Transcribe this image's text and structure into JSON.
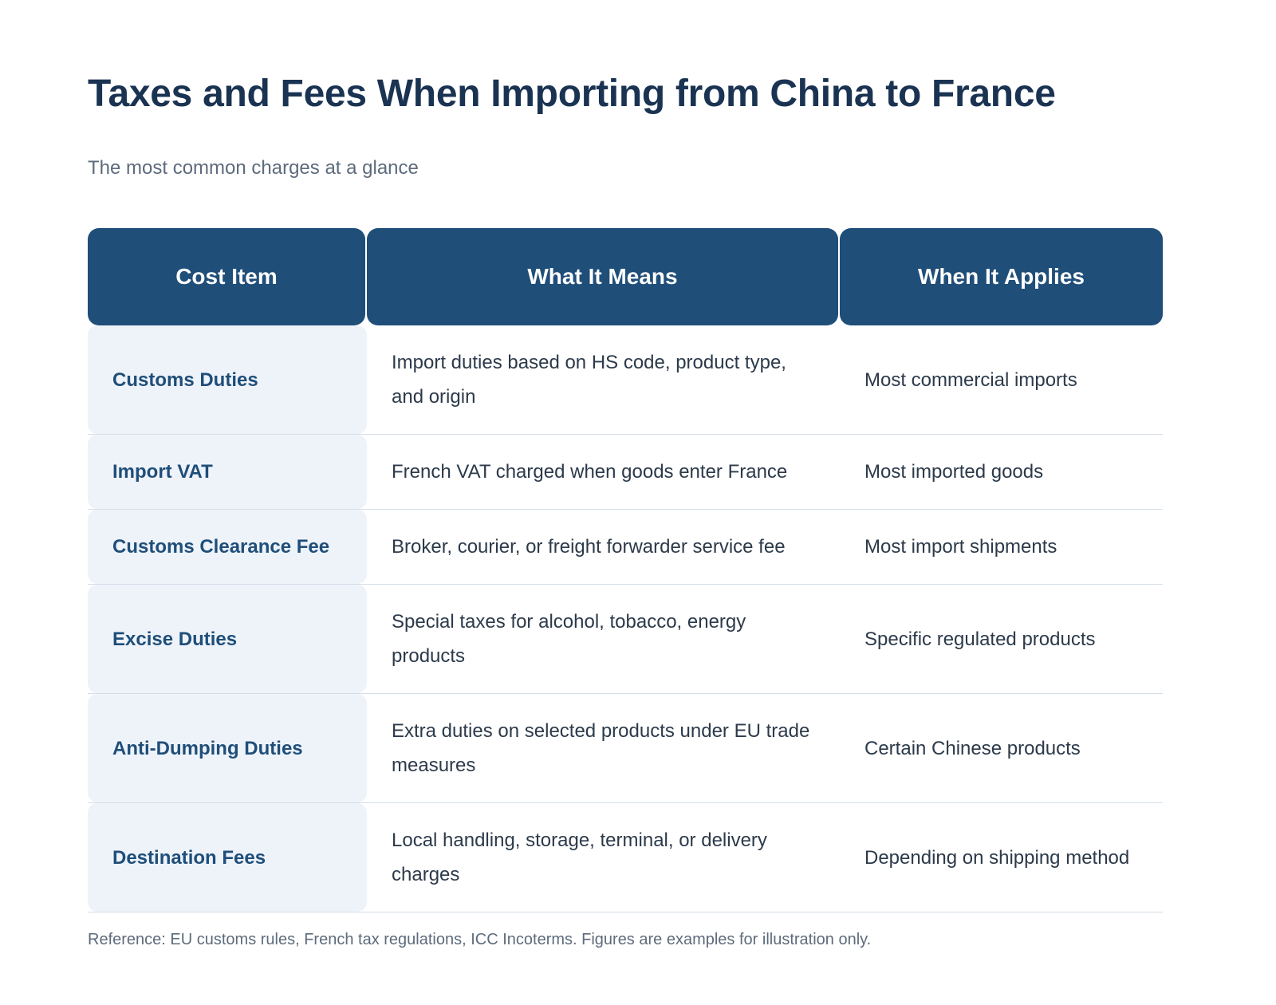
{
  "header": {
    "title": "Taxes and Fees When Importing from China to France",
    "subtitle": "The most common charges at a glance"
  },
  "table": {
    "headers": [
      "Cost Item",
      "What It Means",
      "When It Applies"
    ],
    "rows": [
      [
        "Customs Duties",
        "Import duties based on HS code, product type, and origin",
        "Most commercial imports"
      ],
      [
        "Import VAT",
        "French VAT charged when goods enter France",
        "Most imported goods"
      ],
      [
        "Customs Clearance Fee",
        "Broker, courier, or freight forwarder service fee",
        "Most import shipments"
      ],
      [
        "Excise Duties",
        "Special taxes for alcohol, tobacco, energy products",
        "Specific regulated products"
      ],
      [
        "Anti-Dumping Duties",
        "Extra duties on selected products under EU trade measures",
        "Certain Chinese products"
      ],
      [
        "Destination Fees",
        "Local handling, storage, terminal, or delivery charges",
        "Depending on shipping method"
      ]
    ]
  },
  "footer": {
    "note": "Reference: EU customs rules, French tax regulations, ICC Incoterms. Figures are examples for illustration only."
  }
}
